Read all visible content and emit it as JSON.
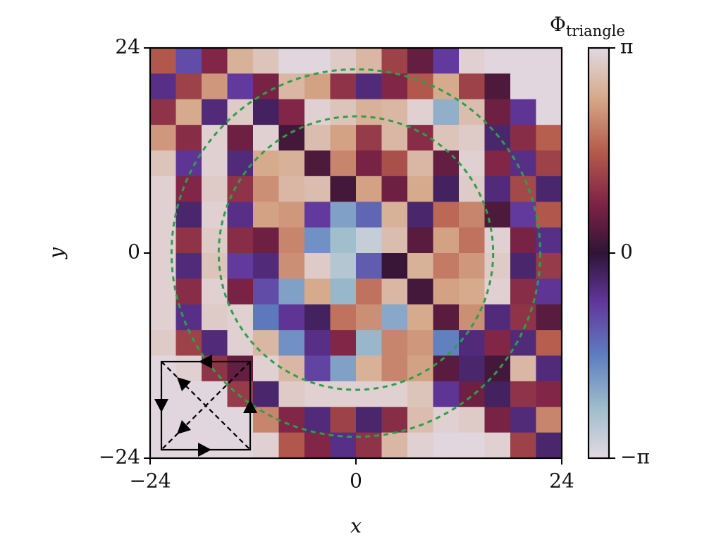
{
  "chart_data": {
    "type": "heatmap",
    "xlabel": "x",
    "ylabel": "y",
    "colorbar_label": {
      "symbol": "Φ",
      "subscript": "triangle"
    },
    "colormap": "twilight",
    "xlim": [
      -24,
      24
    ],
    "ylim": [
      -24,
      24
    ],
    "xticks": [
      {
        "value": -24,
        "label": "−24"
      },
      0,
      24
    ],
    "yticks": [
      {
        "value": -24,
        "label": "−24"
      },
      0,
      24
    ],
    "clim": [
      -3.14159,
      3.14159
    ],
    "cticks": [
      {
        "value": -3.14159,
        "label": "−π"
      },
      0,
      {
        "value": 3.14159,
        "label": "π"
      }
    ],
    "circles": [
      {
        "center": [
          0,
          0
        ],
        "radius": 21.5,
        "color": "#2ca049"
      },
      {
        "center": [
          0,
          0
        ],
        "radius": 16,
        "color": "#2ca049"
      }
    ],
    "z": [
      [
        1.5,
        -1,
        0.8,
        2.5,
        2.8,
        3.1,
        3.1,
        2.9,
        2.6,
        1.2,
        0.5,
        -0.8,
        3.0,
        3.1,
        3.1,
        3.1
      ],
      [
        -0.6,
        1.2,
        2.2,
        -0.8,
        0.7,
        2.6,
        2.3,
        1.0,
        -0.5,
        0.8,
        1.5,
        2.4,
        1.2,
        0.3,
        3.1,
        3.1
      ],
      [
        1.0,
        2.4,
        -0.5,
        2.9,
        -0.3,
        0.8,
        3.0,
        2.8,
        2.5,
        2.6,
        3.0,
        -2.2,
        2.7,
        0.6,
        -0.7,
        3.1
      ],
      [
        2.2,
        0.9,
        3.0,
        0.6,
        3.0,
        0.2,
        2.7,
        2.3,
        1.1,
        2.6,
        0.9,
        2.8,
        2.9,
        -0.4,
        0.9,
        1.6
      ],
      [
        2.8,
        -0.7,
        3.0,
        -0.5,
        2.4,
        2.5,
        0.3,
        2.0,
        0.7,
        1.4,
        2.6,
        0.5,
        3.0,
        0.8,
        -0.6,
        1.2
      ],
      [
        3.0,
        0.8,
        2.9,
        1.0,
        2.1,
        2.6,
        2.7,
        0.2,
        2.3,
        0.6,
        2.4,
        -0.3,
        2.9,
        -0.5,
        1.3,
        -0.4
      ],
      [
        3.0,
        -0.4,
        3.0,
        -0.6,
        2.3,
        2.2,
        -0.8,
        -2.0,
        -1.3,
        2.5,
        -0.4,
        1.7,
        2.0,
        0.3,
        -0.8,
        1.5
      ],
      [
        3.0,
        1.0,
        2.9,
        0.9,
        0.6,
        2.0,
        -1.8,
        -2.4,
        -2.8,
        2.7,
        0.4,
        2.3,
        1.8,
        3.0,
        0.7,
        -0.6
      ],
      [
        3.0,
        -0.5,
        2.8,
        -0.8,
        -0.5,
        2.1,
        2.9,
        -2.6,
        -1.2,
        0.1,
        2.5,
        1.9,
        2.2,
        2.9,
        -0.4,
        1.1
      ],
      [
        3.0,
        0.9,
        3.0,
        0.7,
        -1.0,
        -2.0,
        2.4,
        -2.3,
        1.8,
        2.6,
        0.2,
        2.3,
        2.4,
        3.0,
        0.9,
        -0.7
      ],
      [
        3.0,
        -0.6,
        2.9,
        3.0,
        -1.5,
        -0.7,
        -0.3,
        1.8,
        2.1,
        -2.1,
        2.4,
        0.4,
        2.1,
        -0.5,
        1.0,
        0.4
      ],
      [
        2.9,
        1.2,
        -0.5,
        3.0,
        2.6,
        -1.8,
        -0.6,
        0.8,
        -2.3,
        2.0,
        2.2,
        -1.6,
        -0.5,
        0.8,
        -0.5,
        1.6
      ],
      [
        3.1,
        3.0,
        1.0,
        0.5,
        3.0,
        2.6,
        -0.9,
        -2.0,
        2.5,
        2.0,
        2.3,
        0.4,
        -0.4,
        0.2,
        2.6,
        -0.5
      ],
      [
        3.1,
        3.1,
        3.1,
        1.1,
        -0.4,
        2.9,
        3.0,
        3.0,
        3.0,
        3.0,
        2.8,
        -0.7,
        0.6,
        -0.3,
        1.0,
        0.8
      ],
      [
        3.1,
        3.1,
        3.1,
        3.1,
        2.0,
        0.8,
        -0.5,
        1.2,
        -0.4,
        0.9,
        2.7,
        3.0,
        2.9,
        0.7,
        -0.5,
        2.0
      ],
      [
        3.1,
        3.1,
        3.1,
        3.1,
        3.0,
        1.5,
        0.8,
        -0.6,
        1.0,
        2.6,
        3.0,
        3.1,
        3.1,
        3.0,
        1.2,
        -0.4
      ]
    ]
  }
}
